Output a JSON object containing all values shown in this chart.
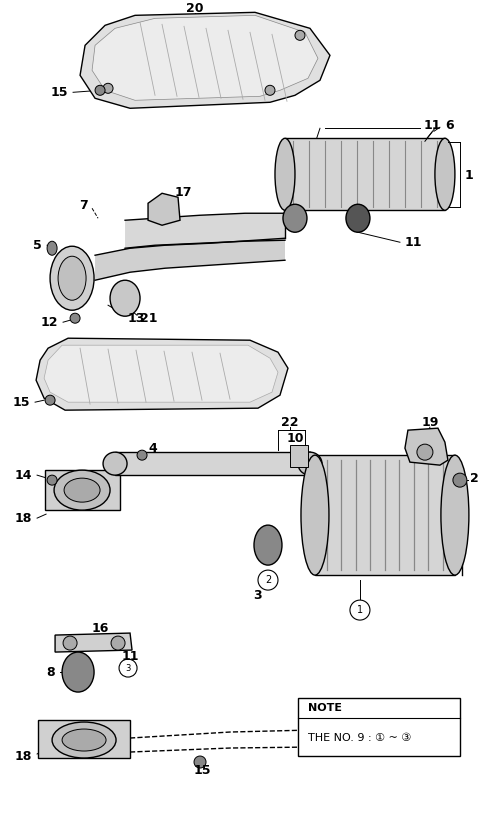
{
  "bg_color": "#ffffff",
  "line_color": "#000000",
  "gray_fill": "#d8d8d8",
  "dark_gray": "#555555",
  "note_text1": "NOTE",
  "note_text2": "THE NO. 9 : ① ~ ③"
}
